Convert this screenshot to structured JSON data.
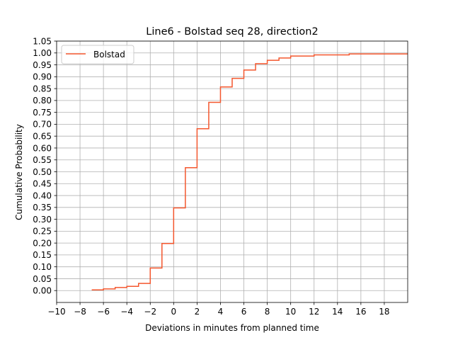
{
  "chart_data": {
    "type": "line",
    "drawstyle": "steps-post",
    "title": "Line6 - Bolstad seq 28, direction2",
    "xlabel": "Deviations in minutes from planned time",
    "ylabel": "Cumulative Probability",
    "xlim": [
      -10,
      20
    ],
    "ylim": [
      -0.05,
      1.05
    ],
    "xticks": [
      -10,
      -8,
      -6,
      -4,
      -2,
      0,
      2,
      4,
      6,
      8,
      10,
      12,
      14,
      16,
      18
    ],
    "xtick_labels": [
      "−10",
      "−8",
      "−6",
      "−4",
      "−2",
      "0",
      "2",
      "4",
      "6",
      "8",
      "10",
      "12",
      "14",
      "16",
      "18"
    ],
    "yticks": [
      0.0,
      0.05,
      0.1,
      0.15,
      0.2,
      0.25,
      0.3,
      0.35,
      0.4,
      0.45,
      0.5,
      0.55,
      0.6,
      0.65,
      0.7,
      0.75,
      0.8,
      0.85,
      0.9,
      0.95,
      1.0,
      1.05
    ],
    "ytick_labels": [
      "0.00",
      "0.05",
      "0.10",
      "0.15",
      "0.20",
      "0.25",
      "0.30",
      "0.35",
      "0.40",
      "0.45",
      "0.50",
      "0.55",
      "0.60",
      "0.65",
      "0.70",
      "0.75",
      "0.80",
      "0.85",
      "0.90",
      "0.95",
      "1.00",
      "1.05"
    ],
    "grid": true,
    "legend_position": "top-left",
    "series": [
      {
        "name": "Bolstad",
        "color": "#f4572e",
        "x": [
          -7,
          -6,
          -5,
          -4,
          -3,
          -2,
          -1,
          0,
          1,
          2,
          3,
          4,
          5,
          6,
          7,
          8,
          9,
          10,
          12,
          15,
          20
        ],
        "y": [
          0.003,
          0.007,
          0.013,
          0.018,
          0.03,
          0.095,
          0.198,
          0.348,
          0.517,
          0.681,
          0.792,
          0.857,
          0.893,
          0.928,
          0.955,
          0.969,
          0.979,
          0.987,
          0.992,
          0.996,
          0.998
        ]
      }
    ]
  }
}
